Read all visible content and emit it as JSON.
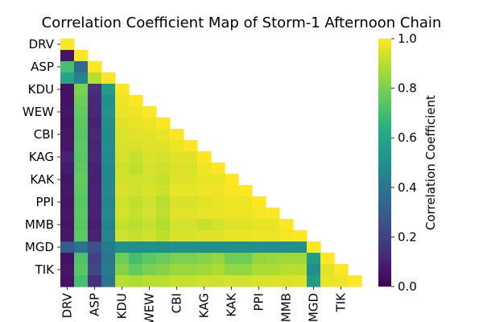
{
  "chart_data": {
    "type": "heatmap",
    "title": "Correlation Coefficient Map of Storm-1 Afternoon Chain",
    "row_labels": [
      "DRV",
      "",
      "ASP",
      "",
      "KDU",
      "",
      "WEW",
      "",
      "CBI",
      "",
      "KAG",
      "",
      "KAK",
      "",
      "PPI",
      "",
      "MMB",
      "",
      "MGD",
      "",
      "TIK",
      ""
    ],
    "col_labels": [
      "DRV",
      "",
      "ASP",
      "",
      "KDU",
      "",
      "WEW",
      "",
      "CBI",
      "",
      "KAG",
      "",
      "KAK",
      "",
      "PPI",
      "",
      "MMB",
      "",
      "MGD",
      "",
      "TIK",
      ""
    ],
    "mask": "upper triangle (lower triangle and diagonal shown)",
    "values": [
      [
        1.0
      ],
      [
        0.06,
        1.0
      ],
      [
        0.7,
        0.35,
        1.0
      ],
      [
        0.6,
        0.45,
        0.9,
        1.0
      ],
      [
        0.05,
        0.8,
        0.15,
        0.55,
        1.0
      ],
      [
        0.05,
        0.78,
        0.12,
        0.5,
        0.98,
        1.0
      ],
      [
        0.06,
        0.76,
        0.12,
        0.52,
        0.97,
        0.98,
        1.0
      ],
      [
        0.05,
        0.75,
        0.1,
        0.5,
        0.96,
        0.97,
        0.98,
        1.0
      ],
      [
        0.07,
        0.74,
        0.12,
        0.48,
        0.95,
        0.96,
        0.96,
        0.97,
        1.0
      ],
      [
        0.06,
        0.75,
        0.11,
        0.49,
        0.95,
        0.95,
        0.96,
        0.96,
        0.98,
        1.0
      ],
      [
        0.1,
        0.74,
        0.12,
        0.48,
        0.94,
        0.92,
        0.95,
        0.94,
        0.96,
        0.96,
        1.0
      ],
      [
        0.08,
        0.75,
        0.1,
        0.47,
        0.93,
        0.91,
        0.94,
        0.93,
        0.95,
        0.95,
        0.98,
        1.0
      ],
      [
        0.06,
        0.76,
        0.09,
        0.46,
        0.94,
        0.93,
        0.94,
        0.92,
        0.96,
        0.96,
        0.97,
        0.97,
        1.0
      ],
      [
        0.07,
        0.75,
        0.1,
        0.47,
        0.95,
        0.93,
        0.95,
        0.93,
        0.97,
        0.97,
        0.98,
        0.98,
        0.99,
        1.0
      ],
      [
        0.06,
        0.74,
        0.1,
        0.46,
        0.93,
        0.91,
        0.93,
        0.9,
        0.95,
        0.95,
        0.96,
        0.97,
        0.98,
        0.98,
        1.0
      ],
      [
        0.07,
        0.75,
        0.1,
        0.47,
        0.94,
        0.92,
        0.94,
        0.91,
        0.96,
        0.96,
        0.97,
        0.97,
        0.98,
        0.98,
        0.99,
        1.0
      ],
      [
        0.06,
        0.74,
        0.09,
        0.45,
        0.92,
        0.9,
        0.92,
        0.89,
        0.94,
        0.94,
        0.92,
        0.94,
        0.96,
        0.96,
        0.97,
        0.97,
        1.0
      ],
      [
        0.07,
        0.75,
        0.1,
        0.46,
        0.93,
        0.92,
        0.93,
        0.91,
        0.95,
        0.95,
        0.96,
        0.96,
        0.97,
        0.97,
        0.98,
        0.98,
        0.99,
        1.0
      ],
      [
        0.3,
        0.38,
        0.25,
        0.42,
        0.5,
        0.5,
        0.5,
        0.5,
        0.5,
        0.5,
        0.5,
        0.5,
        0.5,
        0.5,
        0.5,
        0.5,
        0.5,
        0.5,
        1.0
      ],
      [
        0.05,
        0.72,
        0.2,
        0.4,
        0.78,
        0.7,
        0.75,
        0.77,
        0.8,
        0.8,
        0.82,
        0.84,
        0.78,
        0.78,
        0.84,
        0.85,
        0.86,
        0.86,
        0.55,
        1.0
      ],
      [
        0.06,
        0.74,
        0.22,
        0.42,
        0.82,
        0.76,
        0.8,
        0.82,
        0.85,
        0.85,
        0.86,
        0.88,
        0.84,
        0.84,
        0.88,
        0.88,
        0.9,
        0.9,
        0.5,
        0.96,
        1.0
      ],
      [
        0.05,
        0.7,
        0.15,
        0.4,
        0.9,
        0.88,
        0.9,
        0.9,
        0.92,
        0.92,
        0.93,
        0.93,
        0.94,
        0.94,
        0.95,
        0.95,
        0.95,
        0.96,
        0.55,
        0.97,
        0.98,
        1.0
      ]
    ],
    "colorbar": {
      "label": "Correlation Coefficient",
      "vmin": 0.0,
      "vmax": 1.0,
      "ticks": [
        "0.0",
        "0.2",
        "0.4",
        "0.6",
        "0.8",
        "1.0"
      ],
      "colormap": "viridis"
    }
  }
}
